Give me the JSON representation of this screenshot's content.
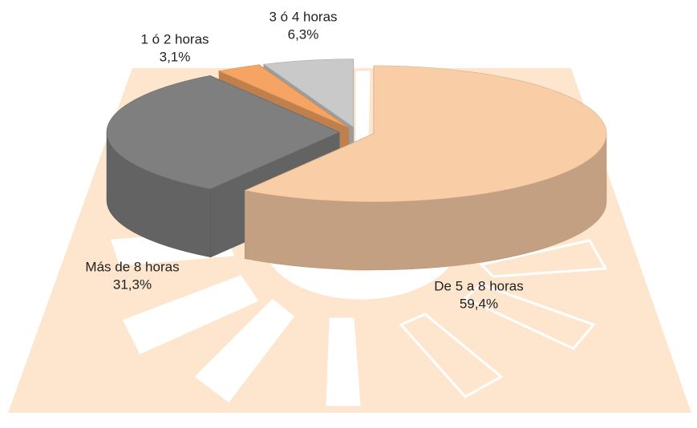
{
  "chart_data": {
    "type": "pie3d",
    "categories": [
      "De 5 a 8 horas",
      "Más de 8 horas",
      "1 ó 2 horas",
      "3 ó 4 horas"
    ],
    "values": [
      59.4,
      31.3,
      3.1,
      6.3
    ],
    "value_labels": [
      "59,4%",
      "31,3%",
      "3,1%",
      "6,3%"
    ],
    "colors": [
      "#f9cda5",
      "#7f7f7f",
      "#f6a463",
      "#c9c9c9"
    ]
  }
}
